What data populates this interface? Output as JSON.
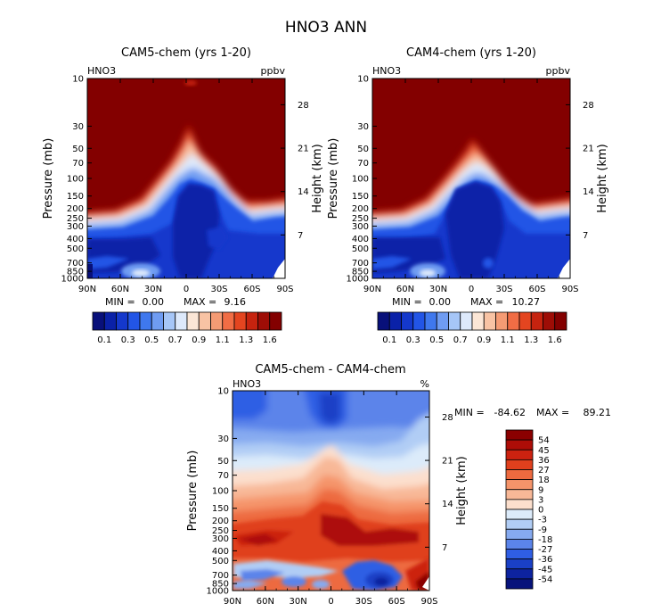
{
  "figure": {
    "title": "HNO3 ANN"
  },
  "chart_data": [
    {
      "type": "heatmap",
      "id": "cam5",
      "title": "CAM5-chem (yrs 1-20)",
      "corner_left": "HNO3",
      "corner_right": "ppbv",
      "xlabel": "",
      "ylabel": "Pressure (mb)",
      "ylabel_right": "Height (km)",
      "x_ticks": [
        "90N",
        "60N",
        "30N",
        "0",
        "30S",
        "60S",
        "90S"
      ],
      "y_ticks": [
        "10",
        "30",
        "50",
        "70",
        "100",
        "150",
        "200",
        "250",
        "300",
        "400",
        "500",
        "700",
        "850",
        "1000"
      ],
      "y_ticks_right": [
        "28",
        "21",
        "14",
        "7"
      ],
      "stats": {
        "min_label": "MIN =",
        "min": "0.00",
        "max_label": "MAX =",
        "max": "9.16"
      },
      "colorbar_labels": [
        "0.1",
        "0.3",
        "0.5",
        "0.7",
        "0.9",
        "1.1",
        "1.3",
        "1.6"
      ]
    },
    {
      "type": "heatmap",
      "id": "cam4",
      "title": "CAM4-chem (yrs 1-20)",
      "corner_left": "HNO3",
      "corner_right": "ppbv",
      "xlabel": "",
      "ylabel": "Pressure (mb)",
      "ylabel_right": "Height (km)",
      "x_ticks": [
        "90N",
        "60N",
        "30N",
        "0",
        "30S",
        "60S",
        "90S"
      ],
      "y_ticks": [
        "10",
        "30",
        "50",
        "70",
        "100",
        "150",
        "200",
        "250",
        "300",
        "400",
        "500",
        "700",
        "850",
        "1000"
      ],
      "y_ticks_right": [
        "28",
        "21",
        "14",
        "7"
      ],
      "stats": {
        "min_label": "MIN =",
        "min": "0.00",
        "max_label": "MAX =",
        "max": "10.27"
      },
      "colorbar_labels": [
        "0.1",
        "0.3",
        "0.5",
        "0.7",
        "0.9",
        "1.1",
        "1.3",
        "1.6"
      ]
    },
    {
      "type": "heatmap",
      "id": "diff",
      "title": "CAM5-chem - CAM4-chem",
      "corner_left": "HNO3",
      "corner_right": "%",
      "xlabel": "",
      "ylabel": "Pressure (mb)",
      "ylabel_right": "Height (km)",
      "x_ticks": [
        "90N",
        "60N",
        "30N",
        "0",
        "30S",
        "60S",
        "90S"
      ],
      "y_ticks": [
        "10",
        "30",
        "50",
        "70",
        "100",
        "150",
        "200",
        "250",
        "300",
        "400",
        "500",
        "700",
        "850",
        "1000"
      ],
      "y_ticks_right": [
        "28",
        "21",
        "14",
        "7"
      ],
      "stats": {
        "min_label": "MIN =",
        "min": "-84.62",
        "max_label": "MAX =",
        "max": "89.21"
      },
      "colorbar_labels": [
        "54",
        "45",
        "36",
        "27",
        "18",
        "9",
        "3",
        "0",
        "-3",
        "-9",
        "-18",
        "-27",
        "-36",
        "-45",
        "-54"
      ]
    }
  ],
  "colors": {
    "seq": [
      "#08107a",
      "#0a21a8",
      "#1438cc",
      "#2255e6",
      "#3f78ee",
      "#6f9cf2",
      "#a6c6f7",
      "#dde9fb",
      "#fbe6d6",
      "#f8c3a4",
      "#f59b74",
      "#f16d45",
      "#e44520",
      "#c6230f",
      "#9e0d06",
      "#830000"
    ],
    "div": [
      "#8a0000",
      "#ad0d07",
      "#cc2210",
      "#e0401d",
      "#ed6a3f",
      "#f5946a",
      "#f8b897",
      "#fcdfcd",
      "#dcebfa",
      "#b1cdf5",
      "#86aaf0",
      "#5b84ea",
      "#2f5ee4",
      "#1a40c6",
      "#0d239f",
      "#07137b"
    ]
  }
}
